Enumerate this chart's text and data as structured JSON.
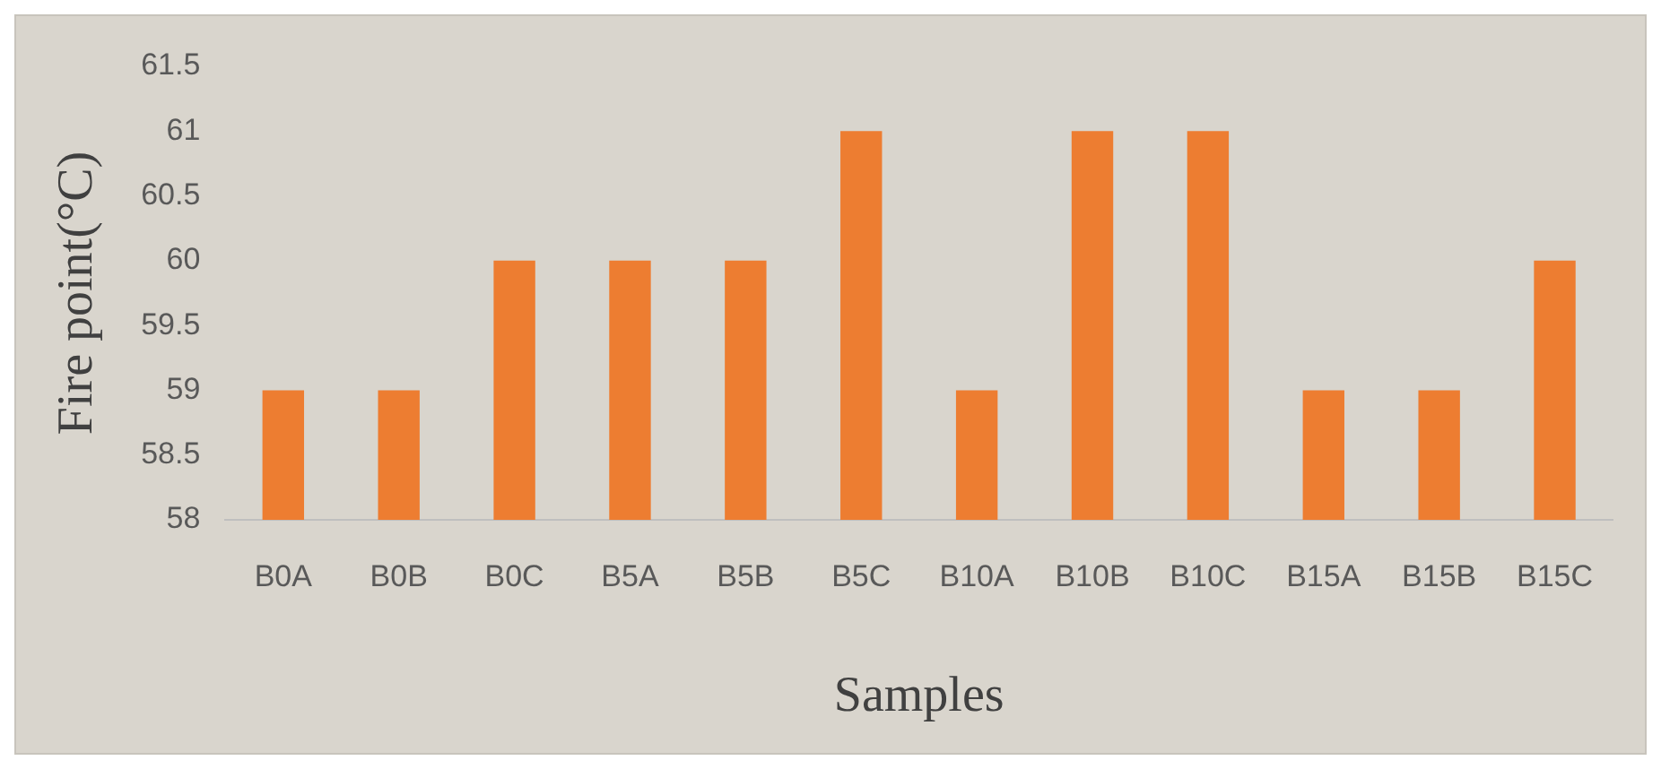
{
  "chart_data": {
    "type": "bar",
    "xlabel": "Samples",
    "ylabel": "Fire point(°C)",
    "categories": [
      "B0A",
      "B0B",
      "B0C",
      "B5A",
      "B5B",
      "B5C",
      "B10A",
      "B10B",
      "B10C",
      "B15A",
      "B15B",
      "B15C"
    ],
    "values": [
      59,
      59,
      60,
      60,
      60,
      61,
      59,
      61,
      61,
      59,
      59,
      60
    ],
    "color": "#ed7d31",
    "ylim": [
      58,
      61.5
    ],
    "yticks": [
      58,
      58.5,
      59,
      59.5,
      60,
      60.5,
      61,
      61.5
    ],
    "grid": false,
    "legend": false
  }
}
